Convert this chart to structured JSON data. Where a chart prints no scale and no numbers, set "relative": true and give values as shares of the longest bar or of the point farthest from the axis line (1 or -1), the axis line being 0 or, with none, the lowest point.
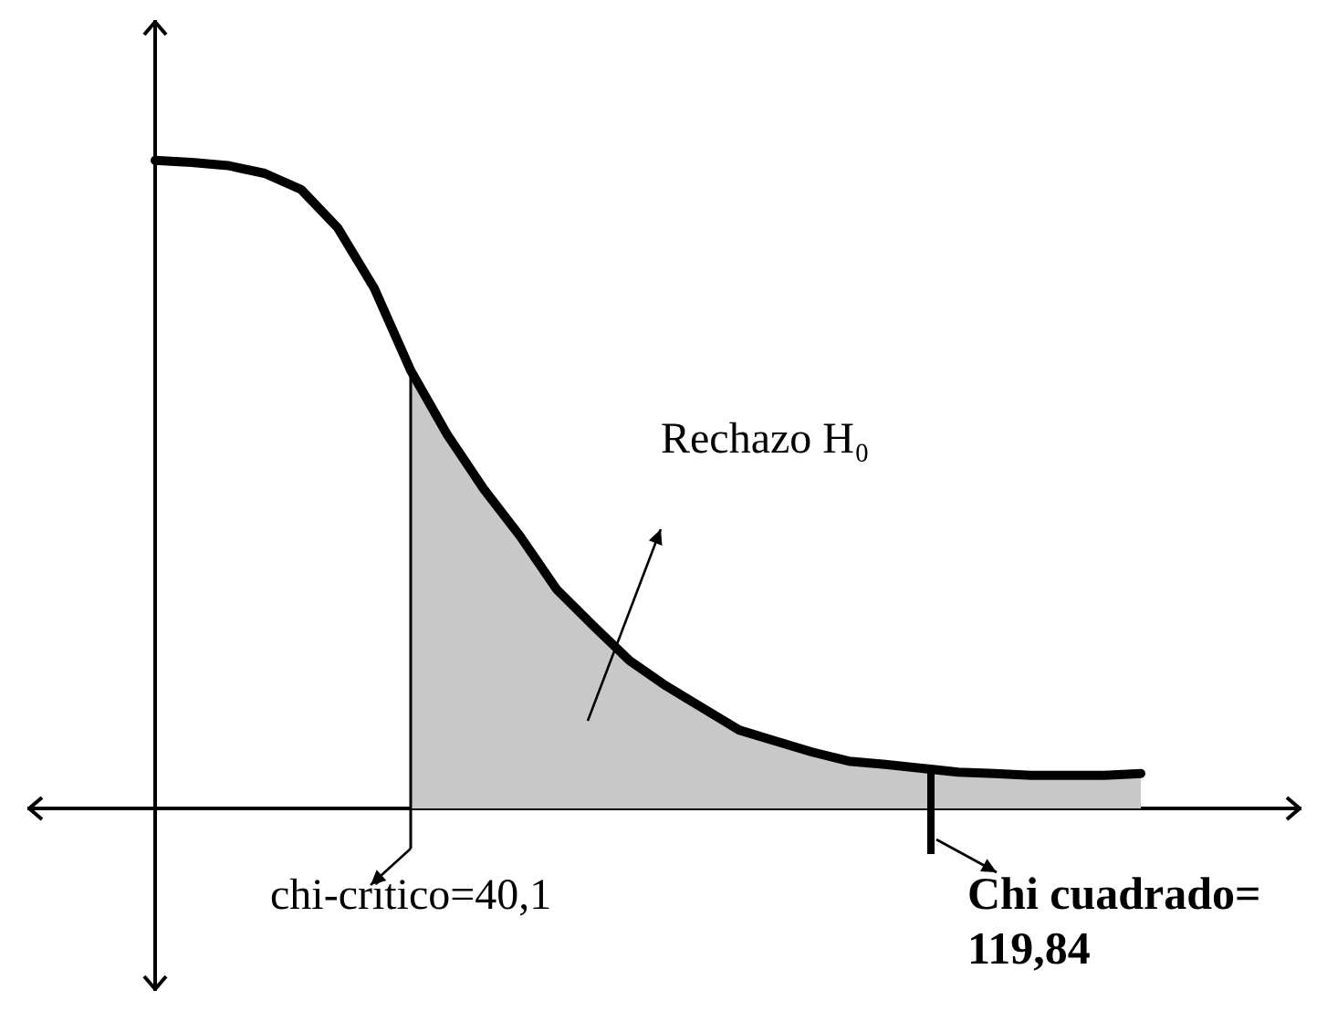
{
  "chart_data": {
    "type": "line",
    "relative": true,
    "categories": [
      null,
      null,
      null,
      null,
      null,
      null,
      null,
      null,
      null,
      null,
      null,
      null,
      null,
      null,
      null,
      null,
      null,
      null,
      null,
      null,
      null,
      null,
      null,
      null,
      null,
      null,
      null,
      null
    ],
    "series": [
      {
        "type": "area",
        "color": "#c8c8c8",
        "values": [
          null,
          null,
          null,
          null,
          null,
          null,
          null,
          0.676,
          0.577,
          0.493,
          0.42,
          0.338,
          0.282,
          0.228,
          0.189,
          0.155,
          0.121,
          0.104,
          0.087,
          0.073,
          0.068,
          0.062,
          0.056,
          0.054,
          0.051,
          0.051,
          0.051,
          0.054
        ]
      },
      {
        "color": "#000000",
        "values": [
          1,
          0.997,
          0.992,
          0.98,
          0.955,
          0.896,
          0.803,
          0.676,
          0.577,
          0.493,
          0.42,
          0.338,
          0.282,
          0.228,
          0.189,
          0.155,
          0.121,
          0.104,
          0.087,
          0.073,
          0.068,
          0.062,
          0.056,
          0.054,
          0.051,
          0.051,
          0.051,
          0.054
        ]
      }
    ],
    "annotations": [
      "Rechazo H₀",
      "chi-crítico=40,1",
      "Chi cuadrado=\n119,84"
    ]
  }
}
